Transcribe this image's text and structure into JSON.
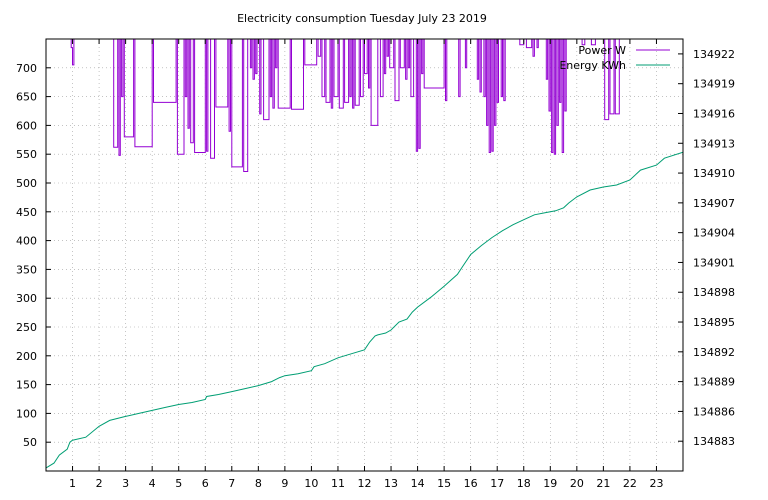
{
  "chart_data": {
    "type": "line",
    "title": "Electricity consumption Tuesday July 23 2019",
    "xlabel": "",
    "ylabel": "",
    "xlim": [
      0,
      24
    ],
    "ylim": [
      0,
      750
    ],
    "y2lim": [
      134880,
      134923.5
    ],
    "x_ticks": [
      1,
      2,
      3,
      4,
      5,
      6,
      7,
      8,
      9,
      10,
      11,
      12,
      13,
      14,
      15,
      16,
      17,
      18,
      19,
      20,
      21,
      22,
      23
    ],
    "y_ticks": [
      50,
      100,
      150,
      200,
      250,
      300,
      350,
      400,
      450,
      500,
      550,
      600,
      650,
      700
    ],
    "y2_ticks": [
      134883,
      134886,
      134889,
      134892,
      134895,
      134898,
      134901,
      134904,
      134907,
      134910,
      134913,
      134916,
      134919,
      134922
    ],
    "grid": true,
    "legend_position": "top-right",
    "series": [
      {
        "name": "Power W",
        "axis": "y",
        "color": "#9400d3",
        "points": [
          [
            0.95,
            750
          ],
          [
            0.95,
            735
          ],
          [
            1.0,
            705
          ],
          [
            1.05,
            750
          ],
          [
            2.55,
            750
          ],
          [
            2.55,
            562
          ],
          [
            2.7,
            750
          ],
          [
            2.75,
            548
          ],
          [
            2.8,
            750
          ],
          [
            2.85,
            650
          ],
          [
            2.9,
            750
          ],
          [
            2.95,
            580
          ],
          [
            3.3,
            750
          ],
          [
            3.35,
            563
          ],
          [
            4.0,
            750
          ],
          [
            4.05,
            640
          ],
          [
            4.9,
            750
          ],
          [
            4.95,
            550
          ],
          [
            5.2,
            750
          ],
          [
            5.25,
            650
          ],
          [
            5.3,
            750
          ],
          [
            5.35,
            595
          ],
          [
            5.4,
            750
          ],
          [
            5.45,
            570
          ],
          [
            5.55,
            750
          ],
          [
            5.6,
            553
          ],
          [
            6.0,
            750
          ],
          [
            6.05,
            555
          ],
          [
            6.1,
            750
          ],
          [
            6.2,
            543
          ],
          [
            6.35,
            750
          ],
          [
            6.4,
            632
          ],
          [
            6.85,
            750
          ],
          [
            6.9,
            590
          ],
          [
            6.95,
            750
          ],
          [
            7.0,
            528
          ],
          [
            7.4,
            750
          ],
          [
            7.45,
            520
          ],
          [
            7.6,
            750
          ],
          [
            7.7,
            700
          ],
          [
            7.75,
            750
          ],
          [
            7.8,
            680
          ],
          [
            7.85,
            750
          ],
          [
            7.9,
            690
          ],
          [
            7.95,
            750
          ],
          [
            8.05,
            620
          ],
          [
            8.1,
            750
          ],
          [
            8.2,
            610
          ],
          [
            8.4,
            750
          ],
          [
            8.45,
            650
          ],
          [
            8.5,
            750
          ],
          [
            8.55,
            630
          ],
          [
            8.6,
            750
          ],
          [
            8.65,
            700
          ],
          [
            8.7,
            750
          ],
          [
            8.75,
            630
          ],
          [
            9.2,
            750
          ],
          [
            9.25,
            628
          ],
          [
            9.7,
            750
          ],
          [
            9.75,
            705
          ],
          [
            10.2,
            750
          ],
          [
            10.25,
            720
          ],
          [
            10.35,
            750
          ],
          [
            10.4,
            650
          ],
          [
            10.5,
            750
          ],
          [
            10.55,
            640
          ],
          [
            10.7,
            750
          ],
          [
            10.75,
            630
          ],
          [
            10.8,
            750
          ],
          [
            10.85,
            650
          ],
          [
            11.0,
            750
          ],
          [
            11.05,
            630
          ],
          [
            11.2,
            750
          ],
          [
            11.25,
            640
          ],
          [
            11.4,
            750
          ],
          [
            11.45,
            650
          ],
          [
            11.5,
            750
          ],
          [
            11.55,
            630
          ],
          [
            11.6,
            750
          ],
          [
            11.65,
            635
          ],
          [
            11.8,
            750
          ],
          [
            11.85,
            650
          ],
          [
            11.95,
            750
          ],
          [
            12.0,
            690
          ],
          [
            12.1,
            750
          ],
          [
            12.15,
            665
          ],
          [
            12.2,
            750
          ],
          [
            12.25,
            600
          ],
          [
            12.5,
            750
          ],
          [
            12.6,
            650
          ],
          [
            12.7,
            750
          ],
          [
            12.75,
            690
          ],
          [
            12.8,
            750
          ],
          [
            12.85,
            720
          ],
          [
            12.9,
            750
          ],
          [
            12.95,
            700
          ],
          [
            13.1,
            750
          ],
          [
            13.15,
            643
          ],
          [
            13.3,
            750
          ],
          [
            13.35,
            700
          ],
          [
            13.5,
            750
          ],
          [
            13.55,
            680
          ],
          [
            13.6,
            750
          ],
          [
            13.65,
            700
          ],
          [
            13.7,
            750
          ],
          [
            13.75,
            650
          ],
          [
            13.85,
            750
          ],
          [
            13.95,
            555
          ],
          [
            14.0,
            750
          ],
          [
            14.05,
            560
          ],
          [
            14.1,
            750
          ],
          [
            14.15,
            690
          ],
          [
            14.2,
            750
          ],
          [
            14.25,
            665
          ],
          [
            15.0,
            750
          ],
          [
            15.05,
            643
          ],
          [
            15.1,
            750
          ],
          [
            15.5,
            750
          ],
          [
            15.55,
            650
          ],
          [
            15.6,
            750
          ],
          [
            15.75,
            750
          ],
          [
            15.8,
            700
          ],
          [
            15.85,
            750
          ],
          [
            16.2,
            750
          ],
          [
            16.25,
            680
          ],
          [
            16.3,
            750
          ],
          [
            16.35,
            658
          ],
          [
            16.4,
            750
          ],
          [
            16.5,
            650
          ],
          [
            16.55,
            750
          ],
          [
            16.6,
            600
          ],
          [
            16.65,
            750
          ],
          [
            16.7,
            553
          ],
          [
            16.75,
            750
          ],
          [
            16.8,
            555
          ],
          [
            16.85,
            750
          ],
          [
            16.9,
            600
          ],
          [
            16.95,
            750
          ],
          [
            17.0,
            640
          ],
          [
            17.05,
            750
          ],
          [
            17.15,
            650
          ],
          [
            17.2,
            750
          ],
          [
            17.25,
            643
          ],
          [
            17.3,
            750
          ],
          [
            17.8,
            750
          ],
          [
            17.85,
            740
          ],
          [
            18.0,
            750
          ],
          [
            18.1,
            735
          ],
          [
            18.3,
            750
          ],
          [
            18.35,
            720
          ],
          [
            18.4,
            750
          ],
          [
            18.5,
            735
          ],
          [
            18.55,
            750
          ],
          [
            18.8,
            750
          ],
          [
            18.85,
            680
          ],
          [
            18.9,
            750
          ],
          [
            18.95,
            625
          ],
          [
            19.0,
            750
          ],
          [
            19.05,
            553
          ],
          [
            19.1,
            750
          ],
          [
            19.15,
            550
          ],
          [
            19.2,
            750
          ],
          [
            19.25,
            600
          ],
          [
            19.3,
            750
          ],
          [
            19.35,
            640
          ],
          [
            19.4,
            750
          ],
          [
            19.45,
            553
          ],
          [
            19.5,
            750
          ],
          [
            19.55,
            625
          ],
          [
            19.6,
            750
          ],
          [
            19.65,
            750
          ],
          [
            20.1,
            750
          ],
          [
            20.2,
            740
          ],
          [
            20.3,
            750
          ],
          [
            20.5,
            750
          ],
          [
            20.55,
            740
          ],
          [
            20.7,
            750
          ],
          [
            21.0,
            750
          ],
          [
            21.05,
            610
          ],
          [
            21.2,
            750
          ],
          [
            21.25,
            620
          ],
          [
            21.4,
            750
          ],
          [
            21.45,
            620
          ],
          [
            21.6,
            750
          ],
          [
            21.65,
            750
          ]
        ]
      },
      {
        "name": "Energy KWh",
        "axis": "y2",
        "color": "#009e73",
        "points": [
          [
            0,
            134880.3
          ],
          [
            0.3,
            134880.8
          ],
          [
            0.5,
            134881.6
          ],
          [
            0.8,
            134882.2
          ],
          [
            0.9,
            134882.9
          ],
          [
            1.0,
            134883.1
          ],
          [
            1.5,
            134883.4
          ],
          [
            2.0,
            134884.5
          ],
          [
            2.4,
            134885.1
          ],
          [
            3.0,
            134885.5
          ],
          [
            3.5,
            134885.8
          ],
          [
            4.0,
            134886.1
          ],
          [
            4.5,
            134886.4
          ],
          [
            5.0,
            134886.7
          ],
          [
            5.5,
            134886.9
          ],
          [
            6.0,
            134887.2
          ],
          [
            6.05,
            134887.5
          ],
          [
            6.5,
            134887.7
          ],
          [
            7.0,
            134888.0
          ],
          [
            7.5,
            134888.3
          ],
          [
            8.0,
            134888.6
          ],
          [
            8.5,
            134889.0
          ],
          [
            8.8,
            134889.4
          ],
          [
            9.0,
            134889.6
          ],
          [
            9.5,
            134889.8
          ],
          [
            10.0,
            134890.1
          ],
          [
            10.1,
            134890.5
          ],
          [
            10.5,
            134890.8
          ],
          [
            11.0,
            134891.4
          ],
          [
            11.5,
            134891.8
          ],
          [
            12.0,
            134892.2
          ],
          [
            12.2,
            134893.0
          ],
          [
            12.4,
            134893.6
          ],
          [
            12.5,
            134893.7
          ],
          [
            12.8,
            134893.9
          ],
          [
            13.0,
            134894.2
          ],
          [
            13.3,
            134895.0
          ],
          [
            13.6,
            134895.3
          ],
          [
            13.8,
            134896.0
          ],
          [
            14.0,
            134896.5
          ],
          [
            14.5,
            134897.5
          ],
          [
            15.0,
            134898.6
          ],
          [
            15.5,
            134899.8
          ],
          [
            15.7,
            134900.6
          ],
          [
            16.0,
            134901.8
          ],
          [
            16.4,
            134902.7
          ],
          [
            16.8,
            134903.5
          ],
          [
            17.2,
            134904.2
          ],
          [
            17.6,
            134904.8
          ],
          [
            18.0,
            134905.3
          ],
          [
            18.4,
            134905.8
          ],
          [
            18.8,
            134906.0
          ],
          [
            19.2,
            134906.2
          ],
          [
            19.5,
            134906.5
          ],
          [
            19.7,
            134907.0
          ],
          [
            20.0,
            134907.6
          ],
          [
            20.5,
            134908.3
          ],
          [
            21.0,
            134908.6
          ],
          [
            21.5,
            134908.8
          ],
          [
            22.0,
            134909.3
          ],
          [
            22.4,
            134910.3
          ],
          [
            23.0,
            134910.8
          ],
          [
            23.3,
            134911.5
          ],
          [
            24.0,
            134912.1
          ]
        ]
      }
    ]
  }
}
